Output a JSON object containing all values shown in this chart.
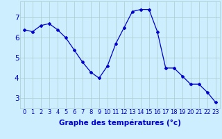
{
  "hours": [
    0,
    1,
    2,
    3,
    4,
    5,
    6,
    7,
    8,
    9,
    10,
    11,
    12,
    13,
    14,
    15,
    16,
    17,
    18,
    19,
    20,
    21,
    22,
    23
  ],
  "temps": [
    6.4,
    6.3,
    6.6,
    6.7,
    6.4,
    6.0,
    5.4,
    4.8,
    4.3,
    4.0,
    4.6,
    5.7,
    6.5,
    7.3,
    7.4,
    7.4,
    6.3,
    4.5,
    4.5,
    4.1,
    3.7,
    3.7,
    3.3,
    2.8
  ],
  "line_color": "#0000cc",
  "marker": "D",
  "marker_size": 2.0,
  "bg_color": "#cceeff",
  "grid_color": "#aacccc",
  "xlabel": "Graphe des températures (°c)",
  "xlabel_color": "#0000cc",
  "xlabel_fontsize": 7.5,
  "tick_color": "#0000cc",
  "tick_fontsize": 6.0,
  "ytick_fontsize": 7.5,
  "ylabel_values": [
    3,
    4,
    5,
    6,
    7
  ],
  "ylim": [
    2.5,
    7.8
  ],
  "xlim": [
    -0.5,
    23.5
  ]
}
